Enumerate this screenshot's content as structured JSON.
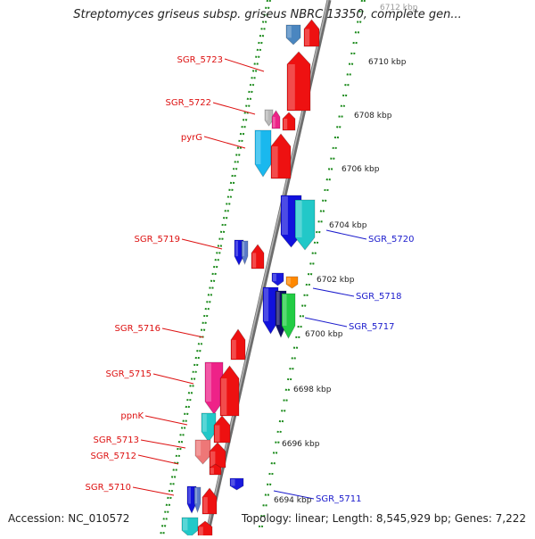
{
  "title": "Streptomyces griseus subsp. griseus NBRC 13350, complete gen...",
  "accession": "Accession: NC_010572",
  "summary": "Topology: linear; Length: 8,545,929 bp; Genes: 7,222",
  "colors": {
    "forward_label": "#dd1111",
    "reverse_label": "#1a1acc",
    "backbone": "#8a8a8a",
    "dots": "#1a8a1a"
  },
  "ticks": [
    {
      "label": "6712 kbp"
    },
    {
      "label": "6710 kbp"
    },
    {
      "label": "6708 kbp"
    },
    {
      "label": "6706 kbp"
    },
    {
      "label": "6704 kbp"
    },
    {
      "label": "6702 kbp"
    },
    {
      "label": "6700 kbp"
    },
    {
      "label": "6698 kbp"
    },
    {
      "label": "6696 kbp"
    },
    {
      "label": "6694 kbp"
    }
  ],
  "gene_labels": [
    {
      "name": "SGR_5723",
      "strand": "left"
    },
    {
      "name": "SGR_5722",
      "strand": "left"
    },
    {
      "name": "pyrG",
      "strand": "left"
    },
    {
      "name": "SGR_5719",
      "strand": "left"
    },
    {
      "name": "SGR_5716",
      "strand": "left"
    },
    {
      "name": "SGR_5715",
      "strand": "left"
    },
    {
      "name": "ppnK",
      "strand": "left"
    },
    {
      "name": "SGR_5713",
      "strand": "left"
    },
    {
      "name": "SGR_5712",
      "strand": "left"
    },
    {
      "name": "SGR_5710",
      "strand": "left"
    },
    {
      "name": "SGR_5720",
      "strand": "right"
    },
    {
      "name": "SGR_5718",
      "strand": "right"
    },
    {
      "name": "SGR_5717",
      "strand": "right"
    },
    {
      "name": "SGR_5711",
      "strand": "right"
    }
  ]
}
